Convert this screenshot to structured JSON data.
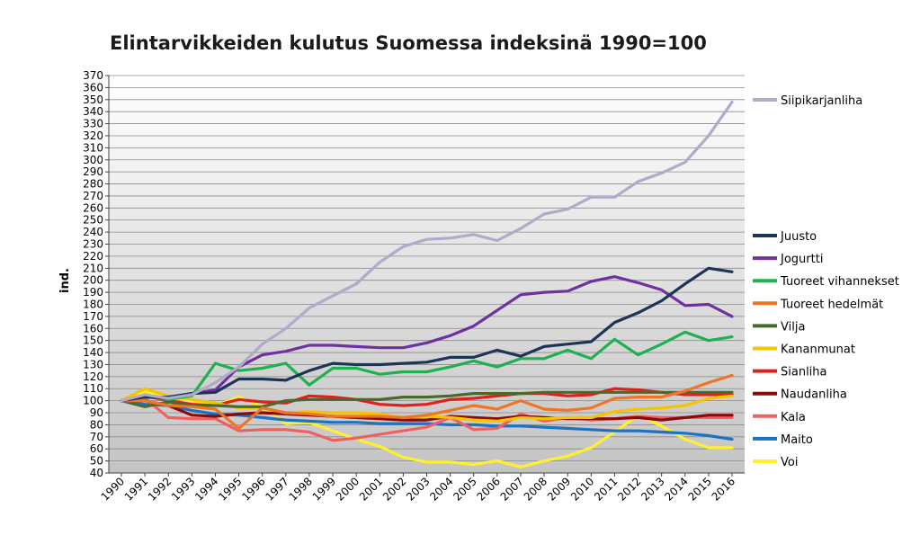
{
  "chart_data": {
    "type": "line",
    "title": "Elintarvikkeiden kulutus Suomessa indeksinä 1990=100",
    "xlabel": "",
    "ylabel": "ind.",
    "ylim": [
      40,
      370
    ],
    "yticks": [
      40,
      50,
      60,
      70,
      80,
      90,
      100,
      110,
      120,
      130,
      140,
      150,
      160,
      170,
      180,
      190,
      200,
      210,
      220,
      230,
      240,
      250,
      260,
      270,
      280,
      290,
      300,
      310,
      320,
      330,
      340,
      350,
      360,
      370
    ],
    "grid": true,
    "legend_position": "right",
    "x": [
      "1990",
      "1991",
      "1992",
      "1993",
      "1994",
      "1995",
      "1996",
      "1997",
      "1998",
      "1999",
      "2000",
      "2001",
      "2002",
      "2003",
      "2004",
      "2005",
      "2006",
      "2007",
      "2008",
      "2009",
      "2010",
      "2011",
      "2012",
      "2013",
      "2014",
      "2015",
      "2016"
    ],
    "series": [
      {
        "name": "Siipikarjanliha",
        "color": "#b3a9c9",
        "values": [
          100,
          105,
          102,
          105,
          115,
          128,
          147,
          160,
          177,
          187,
          197,
          215,
          228,
          234,
          235,
          238,
          233,
          243,
          255,
          259,
          269,
          269,
          282,
          289,
          298,
          320,
          348
        ]
      },
      {
        "name": "Juusto",
        "color": "#1c3557",
        "values": [
          100,
          103,
          103,
          106,
          107,
          118,
          118,
          117,
          125,
          131,
          130,
          130,
          131,
          132,
          136,
          136,
          142,
          137,
          145,
          147,
          149,
          165,
          173,
          183,
          197,
          210,
          207
        ]
      },
      {
        "name": "Jogurtti",
        "color": "#7030a0",
        "values": [
          100,
          103,
          102,
          106,
          109,
          128,
          138,
          141,
          146,
          146,
          145,
          144,
          144,
          148,
          154,
          162,
          175,
          188,
          190,
          191,
          199,
          203,
          198,
          192,
          179,
          180,
          170
        ]
      },
      {
        "name": "Tuoreet vihannekset",
        "color": "#1fb04f",
        "values": [
          100,
          104,
          101,
          104,
          131,
          125,
          127,
          131,
          113,
          127,
          127,
          122,
          124,
          124,
          128,
          133,
          128,
          135,
          135,
          142,
          135,
          151,
          138,
          147,
          157,
          150,
          153
        ]
      },
      {
        "name": "Tuoreet hedelmät",
        "color": "#ee7526",
        "values": [
          100,
          100,
          96,
          95,
          93,
          77,
          94,
          90,
          89,
          87,
          87,
          87,
          86,
          88,
          92,
          96,
          93,
          100,
          93,
          92,
          94,
          102,
          103,
          103,
          108,
          115,
          121
        ]
      },
      {
        "name": "Vilja",
        "color": "#486b2c",
        "values": [
          100,
          95,
          99,
          96,
          96,
          95,
          95,
          100,
          101,
          101,
          101,
          101,
          103,
          103,
          104,
          106,
          106,
          106,
          107,
          107,
          107,
          107,
          107,
          107,
          107,
          107,
          107
        ]
      },
      {
        "name": "Kananmunat",
        "color": "#f5c400",
        "values": [
          100,
          110,
          104,
          101,
          98,
          94,
          94,
          90,
          91,
          90,
          90,
          89,
          86,
          87,
          86,
          84,
          83,
          86,
          85,
          86,
          86,
          91,
          93,
          94,
          96,
          102,
          104
        ]
      },
      {
        "name": "Sianliha",
        "color": "#e0201b",
        "values": [
          100,
          104,
          100,
          97,
          96,
          101,
          99,
          98,
          104,
          103,
          101,
          97,
          96,
          97,
          101,
          102,
          104,
          106,
          106,
          104,
          105,
          110,
          109,
          107,
          105,
          105,
          105
        ]
      },
      {
        "name": "Naudanliha",
        "color": "#8b0a0a",
        "values": [
          100,
          100,
          96,
          88,
          87,
          89,
          90,
          89,
          88,
          87,
          86,
          85,
          84,
          84,
          87,
          86,
          85,
          87,
          86,
          85,
          85,
          85,
          86,
          84,
          86,
          88,
          88
        ]
      },
      {
        "name": "Kala",
        "color": "#f0605e",
        "values": [
          100,
          102,
          86,
          85,
          85,
          75,
          76,
          76,
          74,
          67,
          69,
          72,
          75,
          78,
          86,
          76,
          77,
          89,
          83,
          86,
          84,
          85,
          87,
          86,
          86,
          86,
          86
        ]
      },
      {
        "name": "Maito",
        "color": "#1d72c2",
        "values": [
          100,
          97,
          96,
          92,
          89,
          88,
          86,
          84,
          83,
          82,
          82,
          81,
          81,
          81,
          80,
          80,
          79,
          79,
          78,
          77,
          76,
          75,
          75,
          74,
          73,
          71,
          68
        ]
      },
      {
        "name": "Voi",
        "color": "#fff02f",
        "values": [
          100,
          108,
          103,
          100,
          96,
          103,
          95,
          81,
          82,
          75,
          68,
          62,
          53,
          49,
          49,
          47,
          50,
          45,
          50,
          54,
          61,
          74,
          88,
          79,
          68,
          61,
          61
        ]
      }
    ],
    "legend": {
      "group_top": [
        "Siipikarjanliha"
      ],
      "group_bottom": [
        "Juusto",
        "Jogurtti",
        "Tuoreet vihannekset",
        "Tuoreet hedelmät",
        "Vilja",
        "Kananmunat",
        "Sianliha",
        "Naudanliha",
        "Kala",
        "Maito",
        "Voi"
      ]
    }
  }
}
